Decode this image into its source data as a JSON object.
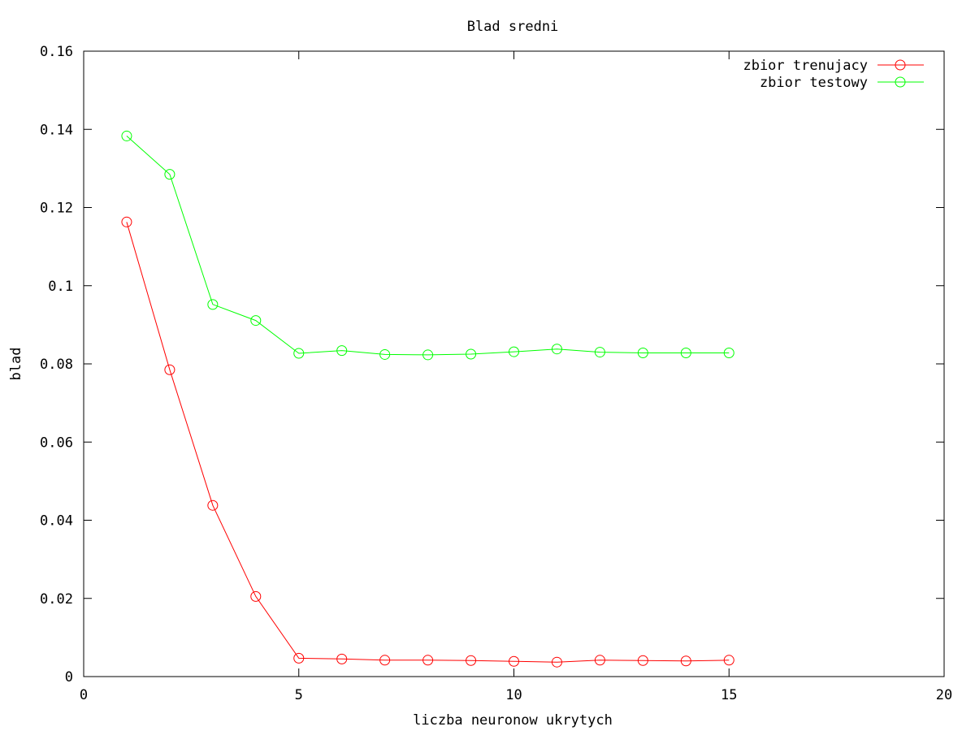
{
  "chart_data": {
    "type": "line",
    "title": "Blad sredni",
    "xlabel": "liczba neuronow ukrytych",
    "ylabel": "blad",
    "xlim": [
      0,
      20
    ],
    "ylim": [
      0,
      0.16
    ],
    "x_ticks": [
      0,
      5,
      10,
      15,
      20
    ],
    "y_ticks": [
      0,
      0.02,
      0.04,
      0.06,
      0.08,
      0.1,
      0.12,
      0.14,
      0.16
    ],
    "x_tick_labels": [
      "0",
      "5",
      "10",
      "15",
      "20"
    ],
    "y_tick_labels": [
      "0",
      "0.02",
      "0.04",
      "0.06",
      "0.08",
      "0.1",
      "0.12",
      "0.14",
      "0.16"
    ],
    "grid": false,
    "legend_position": "top-right",
    "x": [
      1,
      2,
      3,
      4,
      5,
      6,
      7,
      8,
      9,
      10,
      11,
      12,
      13,
      14,
      15
    ],
    "series": [
      {
        "name": "zbior trenujacy",
        "color": "#ff0000",
        "marker": "circle",
        "values": [
          0.1163,
          0.0785,
          0.0438,
          0.0205,
          0.0047,
          0.0045,
          0.0042,
          0.0042,
          0.0041,
          0.0039,
          0.0037,
          0.0042,
          0.0041,
          0.004,
          0.0042
        ]
      },
      {
        "name": "zbior testowy",
        "color": "#00ff00",
        "marker": "circle",
        "values": [
          0.1383,
          0.1285,
          0.0952,
          0.0911,
          0.0827,
          0.0834,
          0.0824,
          0.0823,
          0.0825,
          0.0831,
          0.0838,
          0.083,
          0.0828,
          0.0828,
          0.0828
        ]
      }
    ]
  }
}
